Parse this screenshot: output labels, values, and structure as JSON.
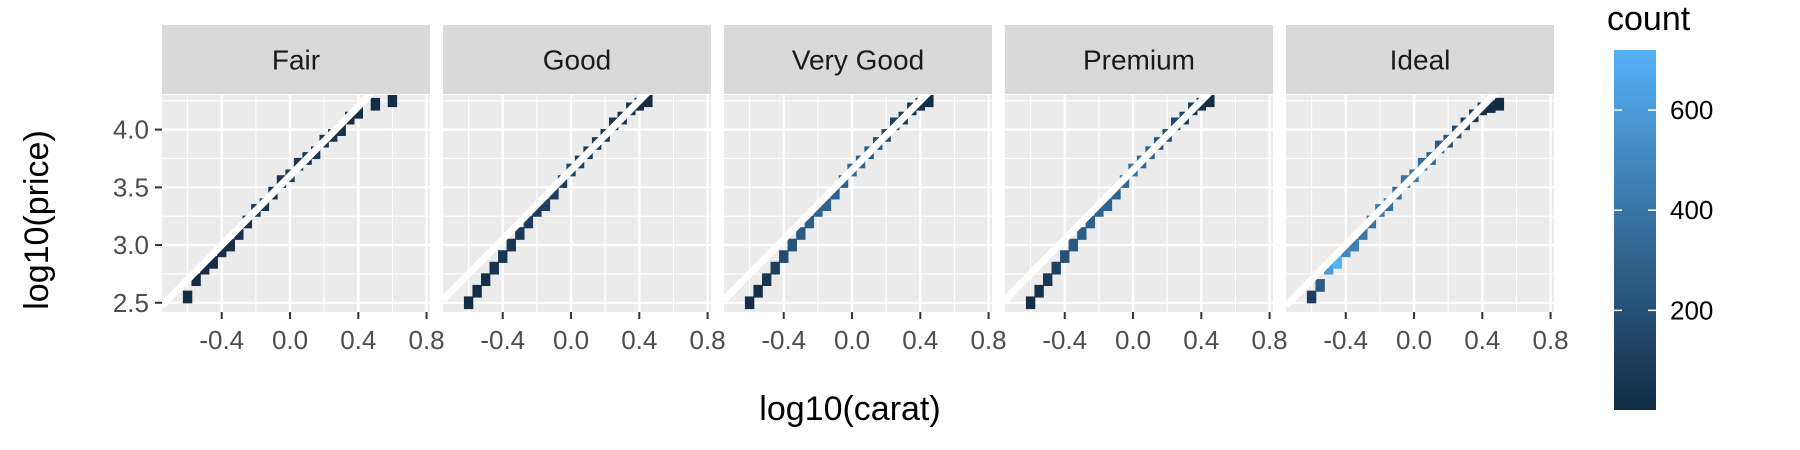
{
  "chart_data": {
    "type": "heatmap",
    "subtype": "faceted-2d-bin",
    "xlabel": "log10(carat)",
    "ylabel": "log10(price)",
    "facets": [
      {
        "label": "Fair",
        "line": {
          "slope": 1.5,
          "intercept": 3.6
        },
        "cells": [
          [
            -0.6,
            2.55,
            8
          ],
          [
            -0.55,
            2.7,
            6
          ],
          [
            -0.5,
            2.8,
            10
          ],
          [
            -0.45,
            2.85,
            14
          ],
          [
            -0.4,
            2.95,
            22
          ],
          [
            -0.35,
            3.0,
            30
          ],
          [
            -0.3,
            3.1,
            40
          ],
          [
            -0.25,
            3.2,
            48
          ],
          [
            -0.2,
            3.3,
            55
          ],
          [
            -0.15,
            3.35,
            60
          ],
          [
            -0.1,
            3.45,
            65
          ],
          [
            -0.05,
            3.55,
            72
          ],
          [
            0.0,
            3.6,
            80
          ],
          [
            0.05,
            3.7,
            75
          ],
          [
            0.1,
            3.75,
            60
          ],
          [
            0.15,
            3.8,
            55
          ],
          [
            0.2,
            3.9,
            50
          ],
          [
            0.25,
            3.95,
            42
          ],
          [
            0.3,
            4.0,
            35
          ],
          [
            0.35,
            4.1,
            25
          ],
          [
            0.4,
            4.15,
            15
          ],
          [
            0.5,
            4.22,
            8
          ],
          [
            0.6,
            4.25,
            4
          ]
        ]
      },
      {
        "label": "Good",
        "line": {
          "slope": 1.5,
          "intercept": 3.65
        },
        "cells": [
          [
            -0.6,
            2.5,
            10
          ],
          [
            -0.55,
            2.6,
            14
          ],
          [
            -0.5,
            2.7,
            25
          ],
          [
            -0.45,
            2.8,
            40
          ],
          [
            -0.4,
            2.9,
            55
          ],
          [
            -0.35,
            3.0,
            70
          ],
          [
            -0.3,
            3.1,
            85
          ],
          [
            -0.25,
            3.2,
            95
          ],
          [
            -0.2,
            3.3,
            100
          ],
          [
            -0.15,
            3.35,
            105
          ],
          [
            -0.1,
            3.45,
            110
          ],
          [
            -0.05,
            3.55,
            115
          ],
          [
            0.0,
            3.65,
            150
          ],
          [
            0.05,
            3.72,
            120
          ],
          [
            0.1,
            3.8,
            100
          ],
          [
            0.15,
            3.88,
            90
          ],
          [
            0.2,
            3.95,
            80
          ],
          [
            0.25,
            4.05,
            65
          ],
          [
            0.3,
            4.1,
            50
          ],
          [
            0.35,
            4.18,
            35
          ],
          [
            0.4,
            4.22,
            20
          ],
          [
            0.45,
            4.25,
            10
          ]
        ]
      },
      {
        "label": "Very Good",
        "line": {
          "slope": 1.5,
          "intercept": 3.65
        },
        "cells": [
          [
            -0.6,
            2.5,
            15
          ],
          [
            -0.55,
            2.6,
            30
          ],
          [
            -0.5,
            2.7,
            60
          ],
          [
            -0.45,
            2.8,
            110
          ],
          [
            -0.4,
            2.9,
            180
          ],
          [
            -0.35,
            3.0,
            220
          ],
          [
            -0.3,
            3.1,
            260
          ],
          [
            -0.25,
            3.2,
            280
          ],
          [
            -0.2,
            3.3,
            300
          ],
          [
            -0.15,
            3.35,
            300
          ],
          [
            -0.1,
            3.45,
            290
          ],
          [
            -0.05,
            3.55,
            300
          ],
          [
            0.0,
            3.65,
            330
          ],
          [
            0.05,
            3.72,
            280
          ],
          [
            0.1,
            3.8,
            240
          ],
          [
            0.15,
            3.88,
            200
          ],
          [
            0.2,
            3.95,
            160
          ],
          [
            0.25,
            4.05,
            120
          ],
          [
            0.3,
            4.1,
            90
          ],
          [
            0.35,
            4.18,
            60
          ],
          [
            0.4,
            4.22,
            30
          ],
          [
            0.45,
            4.25,
            12
          ]
        ]
      },
      {
        "label": "Premium",
        "line": {
          "slope": 1.5,
          "intercept": 3.65
        },
        "cells": [
          [
            -0.6,
            2.5,
            15
          ],
          [
            -0.55,
            2.6,
            35
          ],
          [
            -0.5,
            2.7,
            70
          ],
          [
            -0.45,
            2.8,
            120
          ],
          [
            -0.4,
            2.9,
            200
          ],
          [
            -0.35,
            3.0,
            250
          ],
          [
            -0.3,
            3.1,
            280
          ],
          [
            -0.25,
            3.2,
            290
          ],
          [
            -0.2,
            3.3,
            300
          ],
          [
            -0.15,
            3.35,
            310
          ],
          [
            -0.1,
            3.45,
            300
          ],
          [
            -0.05,
            3.55,
            330
          ],
          [
            0.0,
            3.65,
            380
          ],
          [
            0.05,
            3.72,
            320
          ],
          [
            0.1,
            3.8,
            280
          ],
          [
            0.15,
            3.88,
            240
          ],
          [
            0.2,
            3.95,
            200
          ],
          [
            0.25,
            4.05,
            160
          ],
          [
            0.3,
            4.1,
            120
          ],
          [
            0.35,
            4.18,
            80
          ],
          [
            0.4,
            4.22,
            40
          ],
          [
            0.45,
            4.25,
            15
          ]
        ]
      },
      {
        "label": "Ideal",
        "line": {
          "slope": 1.5,
          "intercept": 3.6
        },
        "cells": [
          [
            -0.6,
            2.55,
            100
          ],
          [
            -0.55,
            2.65,
            250
          ],
          [
            -0.5,
            2.8,
            600
          ],
          [
            -0.45,
            2.85,
            720
          ],
          [
            -0.4,
            2.95,
            500
          ],
          [
            -0.35,
            3.0,
            450
          ],
          [
            -0.3,
            3.1,
            400
          ],
          [
            -0.25,
            3.2,
            380
          ],
          [
            -0.2,
            3.3,
            420
          ],
          [
            -0.15,
            3.35,
            380
          ],
          [
            -0.1,
            3.45,
            350
          ],
          [
            -0.05,
            3.55,
            400
          ],
          [
            0.0,
            3.6,
            420
          ],
          [
            0.05,
            3.7,
            350
          ],
          [
            0.1,
            3.75,
            300
          ],
          [
            0.15,
            3.85,
            260
          ],
          [
            0.2,
            3.9,
            220
          ],
          [
            0.25,
            3.98,
            170
          ],
          [
            0.3,
            4.05,
            120
          ],
          [
            0.35,
            4.12,
            80
          ],
          [
            0.4,
            4.18,
            40
          ],
          [
            0.45,
            4.2,
            15
          ],
          [
            0.5,
            4.22,
            6
          ]
        ]
      }
    ],
    "xlim": [
      -0.75,
      0.82
    ],
    "ylim": [
      2.42,
      4.3
    ],
    "xticks": [
      -0.4,
      0.0,
      0.4,
      0.8
    ],
    "xtick_labels": [
      "-0.4",
      "0.0",
      "0.4",
      "0.8"
    ],
    "yticks": [
      2.5,
      3.0,
      3.5,
      4.0
    ],
    "ytick_labels": [
      "2.5",
      "3.0",
      "3.5",
      "4.0"
    ],
    "legend": {
      "title": "count",
      "position": "right",
      "range": [
        1,
        720
      ],
      "ticks": [
        200,
        400,
        600
      ],
      "tick_labels": [
        "200",
        "400",
        "600"
      ],
      "color_low": "#132B43",
      "color_high": "#56B1F7"
    },
    "panel_background": "#EBEBEB",
    "strip_background": "#D9D9D9",
    "grid": true,
    "line_color": "#FFFFFF"
  }
}
